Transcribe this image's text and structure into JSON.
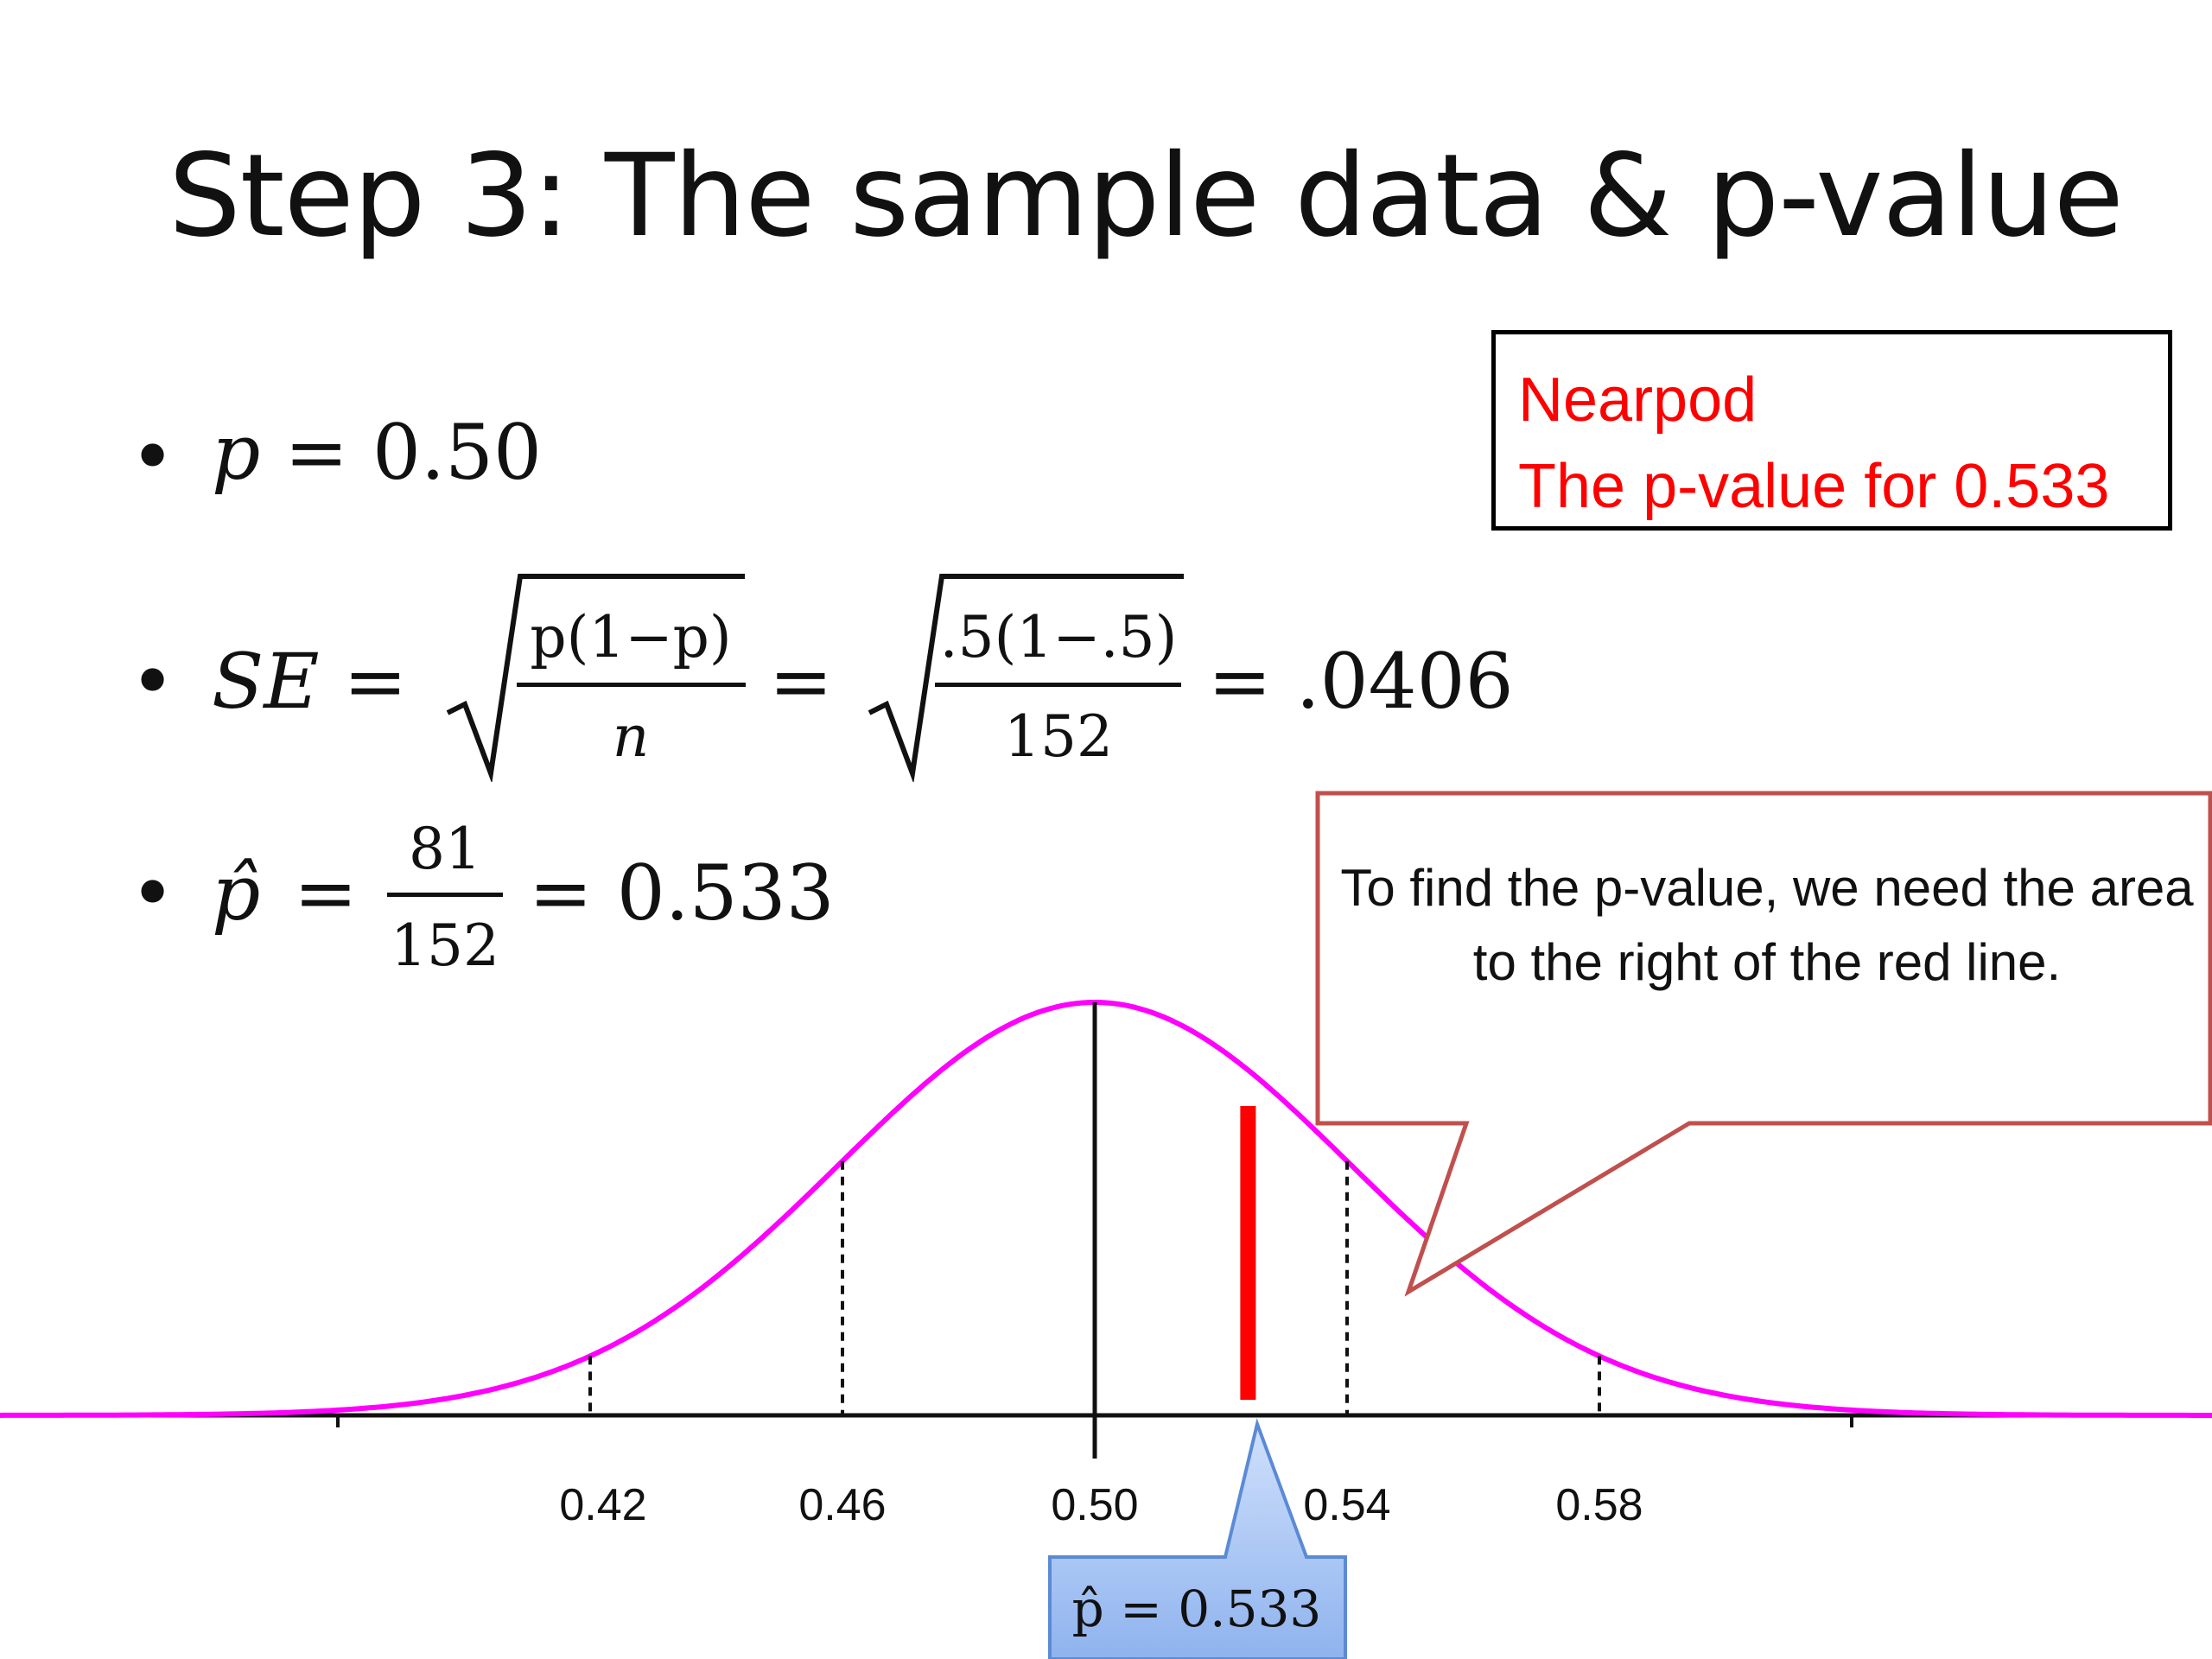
{
  "title": "Step 3: The sample data & p-value",
  "bullets": {
    "symbol": "•",
    "p_line": {
      "var": "p",
      "rest": "= 0.50"
    },
    "se_line": {
      "lhs": "SE =",
      "frac1_num": "p(1−p)",
      "frac1_den": "n",
      "eq": "=",
      "frac2_num": ".5(1−.5)",
      "frac2_den": "152",
      "result": "= .0406"
    },
    "phat_line": {
      "var": "p̂",
      "eq1": "=",
      "num": "81",
      "den": "152",
      "result": "= 0.533"
    }
  },
  "nearpod": {
    "line1": "Nearpod",
    "line2": "The p-value for 0.533",
    "color": "#ff0000"
  },
  "callout": {
    "text": "To find the p-value, we need the area to the right of the red line.",
    "border_color": "#c0504d"
  },
  "phat_callout": {
    "text": "p̂ = 0.533",
    "fill": "#a9c6f4",
    "border": "#5b8ad6"
  },
  "chart_data": {
    "type": "area",
    "distribution": "normal",
    "mean": 0.5,
    "sd": 0.0406,
    "curve_color": "#ff00ff",
    "marker_value": 0.533,
    "marker_color": "#ff0000",
    "x_ticks": [
      "0.42",
      "0.46",
      "0.50",
      "0.54",
      "0.58"
    ],
    "x_tick_values": [
      0.42,
      0.46,
      0.5,
      0.54,
      0.58
    ],
    "dashed_line_values": [
      0.42,
      0.46,
      0.54,
      0.58
    ],
    "solid_line_value": 0.5
  }
}
